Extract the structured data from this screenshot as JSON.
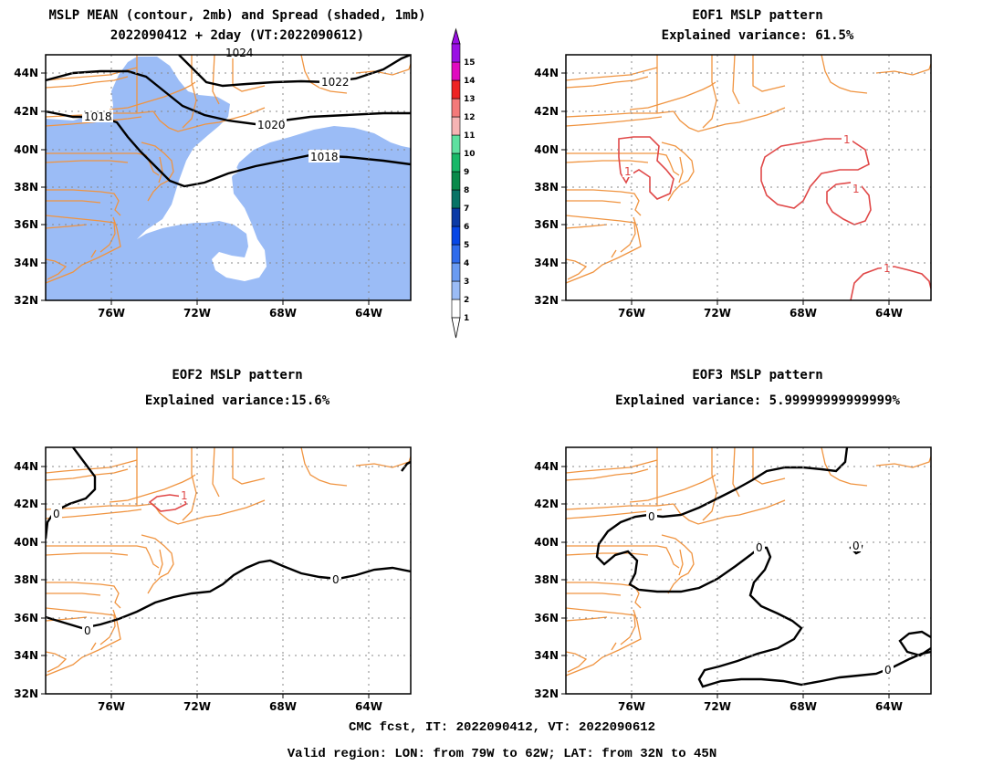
{
  "panels": [
    {
      "id": "mean",
      "title_line1": "MSLP MEAN (contour, 2mb) and Spread (shaded, 1mb)",
      "title_line2": "2022090412 + 2day (VT:2022090612)",
      "contour_labels": [
        "1024",
        "1022",
        "1020",
        "1018",
        "1018"
      ]
    },
    {
      "id": "eof1",
      "title_line1": "EOF1 MSLP pattern",
      "title_line2": "Explained variance: 61.5%",
      "contour_labels": [
        "1",
        "1",
        "1",
        "1"
      ]
    },
    {
      "id": "eof2",
      "title_line1": "EOF2 MSLP pattern",
      "title_line2": "Explained variance:15.6%",
      "contour_labels": [
        "0",
        "0",
        "0",
        "1"
      ]
    },
    {
      "id": "eof3",
      "title_line1": "EOF3 MSLP pattern",
      "title_line2": "Explained variance: 5.99999999999999%",
      "contour_labels": [
        "0",
        "0",
        "0",
        "0"
      ]
    }
  ],
  "axes": {
    "lon_ticks": [
      "76W",
      "72W",
      "68W",
      "64W"
    ],
    "lat_ticks": [
      "44N",
      "42N",
      "40N",
      "38N",
      "36N",
      "34N",
      "32N"
    ]
  },
  "colorbar": {
    "labels": [
      "1",
      "2",
      "3",
      "4",
      "5",
      "6",
      "7",
      "8",
      "9",
      "10",
      "11",
      "12",
      "13",
      "14",
      "15"
    ],
    "colors": [
      "#ffffff",
      "#9bbcf6",
      "#6a9bf2",
      "#2f6bec",
      "#0646e6",
      "#0b3aa6",
      "#087366",
      "#0a8a4a",
      "#18b868",
      "#5ee0a0",
      "#f6b4b4",
      "#f47a7a",
      "#ee2424",
      "#e00ac0",
      "#9a10e4"
    ]
  },
  "colors": {
    "spread_shade": "#9bbcf6",
    "coastline": "#f09440",
    "eof_positive": "#e04848",
    "contour": "#000000",
    "grid": "#888888"
  },
  "footer": {
    "line1": "CMC fcst, IT: 2022090412, VT: 2022090612",
    "line2": "Valid region: LON: from 79W to 62W; LAT: from 32N to 45N"
  }
}
